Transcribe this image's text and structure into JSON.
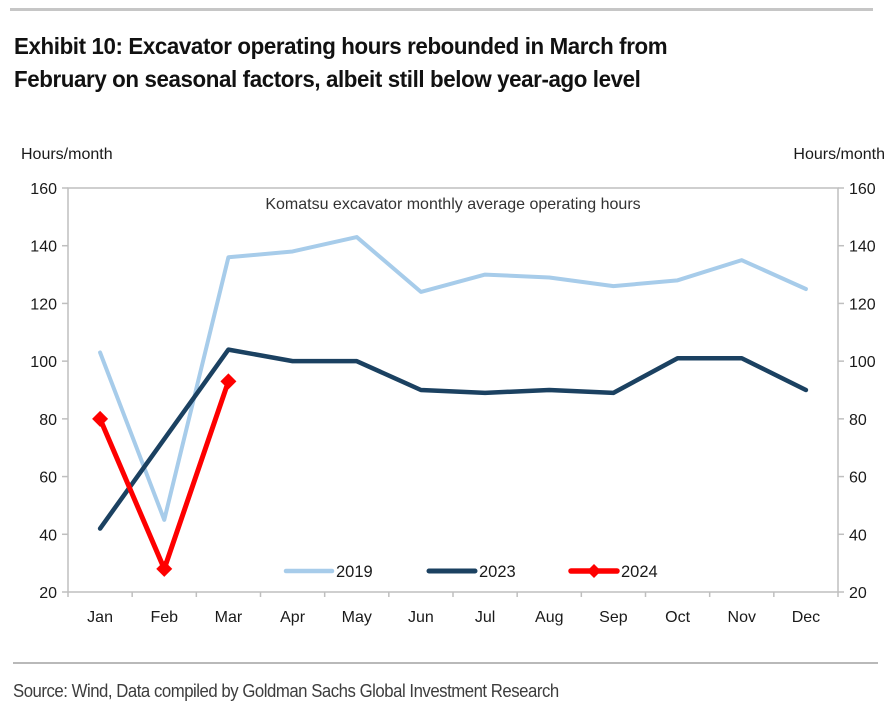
{
  "header": {
    "title_line1": "Exhibit 10: Excavator operating hours rebounded in March from",
    "title_line2": "February on seasonal factors, albeit still below year-ago level"
  },
  "chart_data": {
    "type": "line",
    "title": "Komatsu excavator monthly average operating hours",
    "left_axis_unit": "Hours/month",
    "right_axis_unit": "Hours/month",
    "categories": [
      "Jan",
      "Feb",
      "Mar",
      "Apr",
      "May",
      "Jun",
      "Jul",
      "Aug",
      "Sep",
      "Oct",
      "Nov",
      "Dec"
    ],
    "ylim": [
      20,
      160
    ],
    "y_tick_step": 20,
    "grid": "off",
    "legend_position": "inside-bottom",
    "series": [
      {
        "name": "2019",
        "color": "#A7CCEA",
        "stroke_width": 4,
        "marker": "none",
        "values": [
          103,
          45,
          136,
          138,
          143,
          124,
          130,
          129,
          126,
          128,
          135,
          125
        ]
      },
      {
        "name": "2023",
        "color": "#1B4161",
        "stroke_width": 4.5,
        "marker": "none",
        "values": [
          42,
          73,
          104,
          100,
          100,
          90,
          89,
          90,
          89,
          101,
          101,
          90
        ]
      },
      {
        "name": "2024",
        "color": "#FE0000",
        "stroke_width": 5,
        "marker": "diamond",
        "values": [
          80,
          28,
          93,
          null,
          null,
          null,
          null,
          null,
          null,
          null,
          null,
          null
        ]
      }
    ]
  },
  "footer": {
    "source": "Source: Wind, Data compiled by Goldman Sachs Global Investment Research"
  },
  "colors": {
    "axis": "#bfbfbf",
    "tick_text": "#1a1a1a",
    "chart_title_text": "#333333"
  }
}
